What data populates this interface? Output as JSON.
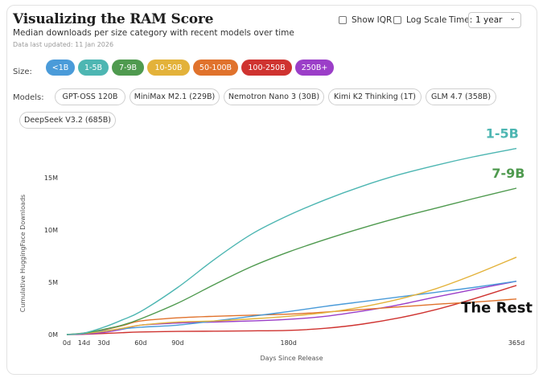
{
  "header": {
    "title": "Visualizing the RAM Score",
    "subtitle": "Median downloads per size category with recent models over time",
    "updated": "Data last updated: 11 Jan 2026"
  },
  "controls": {
    "show_iqr": "Show IQR",
    "log_scale": "Log Scale",
    "time_label": "Time:",
    "time_value": "1 year"
  },
  "size_row": {
    "label": "Size:",
    "pills": [
      {
        "label": "<1B",
        "color": "#4a9bd9"
      },
      {
        "label": "1-5B",
        "color": "#4db6b2"
      },
      {
        "label": "7-9B",
        "color": "#4f9a4f"
      },
      {
        "label": "10-50B",
        "color": "#e3b23a"
      },
      {
        "label": "50-100B",
        "color": "#e0722c"
      },
      {
        "label": "100-250B",
        "color": "#cf3330"
      },
      {
        "label": "250B+",
        "color": "#9b3ec8"
      }
    ]
  },
  "models_row": {
    "label": "Models:",
    "models": [
      "GPT-OSS 120B",
      "MiniMax M2.1 (229B)",
      "Nemotron Nano 3 (30B)",
      "Kimi K2 Thinking (1T)",
      "GLM 4.7 (358B)",
      "DeepSeek V3.2 (685B)"
    ]
  },
  "chart_data": {
    "type": "line",
    "title": "",
    "xlabel": "Days Since Release",
    "ylabel": "Cumulative HuggingFace Downloads",
    "xlim": [
      0,
      365
    ],
    "ylim": [
      0,
      18000000
    ],
    "x_ticks": [
      0,
      14,
      30,
      60,
      90,
      180,
      365
    ],
    "x_tick_labels": [
      "0d",
      "14d",
      "30d",
      "60d",
      "90d",
      "180d",
      "365d"
    ],
    "y_ticks": [
      0,
      5000000,
      10000000,
      15000000
    ],
    "y_tick_labels": [
      "0M",
      "5M",
      "10M",
      "15M"
    ],
    "x": [
      0,
      14,
      30,
      45,
      60,
      90,
      120,
      150,
      180,
      210,
      240,
      270,
      300,
      330,
      365
    ],
    "series": [
      {
        "name": "1-5B",
        "color": "#4db6b2",
        "values": [
          0,
          150000,
          700000,
          1400000,
          2200000,
          4500000,
          7200000,
          9600000,
          11400000,
          12900000,
          14200000,
          15300000,
          16200000,
          17000000,
          17800000
        ]
      },
      {
        "name": "7-9B",
        "color": "#4f9a4f",
        "values": [
          0,
          120000,
          500000,
          900000,
          1500000,
          3000000,
          4800000,
          6500000,
          7900000,
          9100000,
          10200000,
          11200000,
          12100000,
          13000000,
          14000000
        ]
      },
      {
        "name": "10-50B",
        "color": "#e3b23a",
        "values": [
          0,
          100000,
          300000,
          600000,
          900000,
          1200000,
          1300000,
          1500000,
          1750000,
          2100000,
          2650000,
          3400000,
          4400000,
          5700000,
          7400000
        ]
      },
      {
        "name": "<1B",
        "color": "#4a9bd9",
        "values": [
          0,
          100000,
          350000,
          550000,
          700000,
          900000,
          1300000,
          1750000,
          2200000,
          2700000,
          3150000,
          3600000,
          4050000,
          4500000,
          5100000
        ]
      },
      {
        "name": "50-100B",
        "color": "#e0722c",
        "values": [
          0,
          150000,
          450000,
          850000,
          1300000,
          1600000,
          1750000,
          1850000,
          1950000,
          2150000,
          2400000,
          2650000,
          2900000,
          3100000,
          3400000
        ]
      },
      {
        "name": "250B+",
        "color": "#9b3ec8",
        "values": [
          0,
          50000,
          200000,
          500000,
          900000,
          1100000,
          1200000,
          1300000,
          1450000,
          1750000,
          2250000,
          2850000,
          3600000,
          4300000,
          5100000
        ]
      },
      {
        "name": "100-250B",
        "color": "#cf3330",
        "values": [
          0,
          20000,
          100000,
          180000,
          250000,
          300000,
          320000,
          350000,
          400000,
          600000,
          1000000,
          1600000,
          2400000,
          3400000,
          4700000
        ]
      }
    ],
    "annotations": [
      {
        "text": "1-5B",
        "color": "#4db6b2",
        "x": 340,
        "y": 18800000
      },
      {
        "text": "7-9B",
        "color": "#4f9a4f",
        "x": 345,
        "y": 15000000
      },
      {
        "text": "The Rest",
        "color": "#111111",
        "x": 320,
        "y": 2100000
      }
    ]
  }
}
